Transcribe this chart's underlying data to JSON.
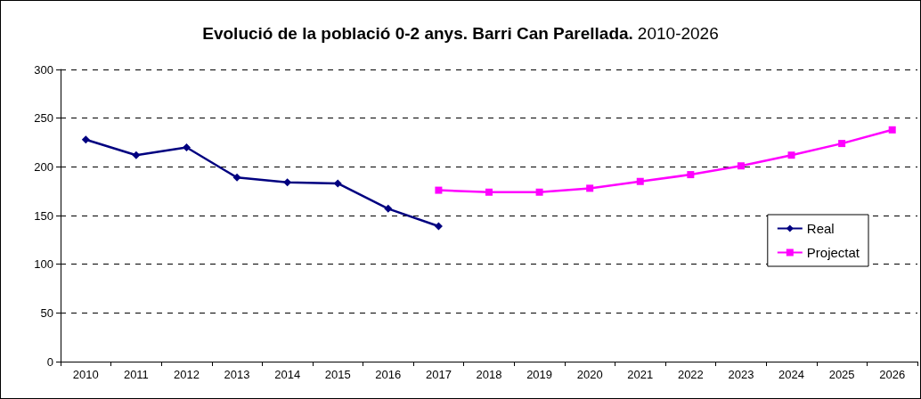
{
  "chart_data": {
    "type": "line",
    "title": "Evolució de la població 0-2 anys. Barri Can Parellada.",
    "subtitle": "2010-2026",
    "categories": [
      "2010",
      "2011",
      "2012",
      "2013",
      "2014",
      "2015",
      "2016",
      "2017",
      "2018",
      "2019",
      "2020",
      "2021",
      "2022",
      "2023",
      "2024",
      "2025",
      "2026"
    ],
    "series": [
      {
        "name": "Real",
        "color": "#000080",
        "marker": "diamond",
        "values": [
          228,
          212,
          220,
          189,
          184,
          183,
          157,
          139,
          null,
          null,
          null,
          null,
          null,
          null,
          null,
          null,
          null
        ]
      },
      {
        "name": "Projectat",
        "color": "#ff00ff",
        "marker": "square",
        "values": [
          null,
          null,
          null,
          null,
          null,
          null,
          null,
          176,
          174,
          174,
          178,
          185,
          192,
          201,
          212,
          224,
          238
        ]
      }
    ],
    "ylim": [
      0,
      300
    ],
    "yticks": [
      0,
      50,
      100,
      150,
      200,
      250,
      300
    ],
    "grid": "y",
    "legend": "right",
    "line_style": "solid"
  }
}
